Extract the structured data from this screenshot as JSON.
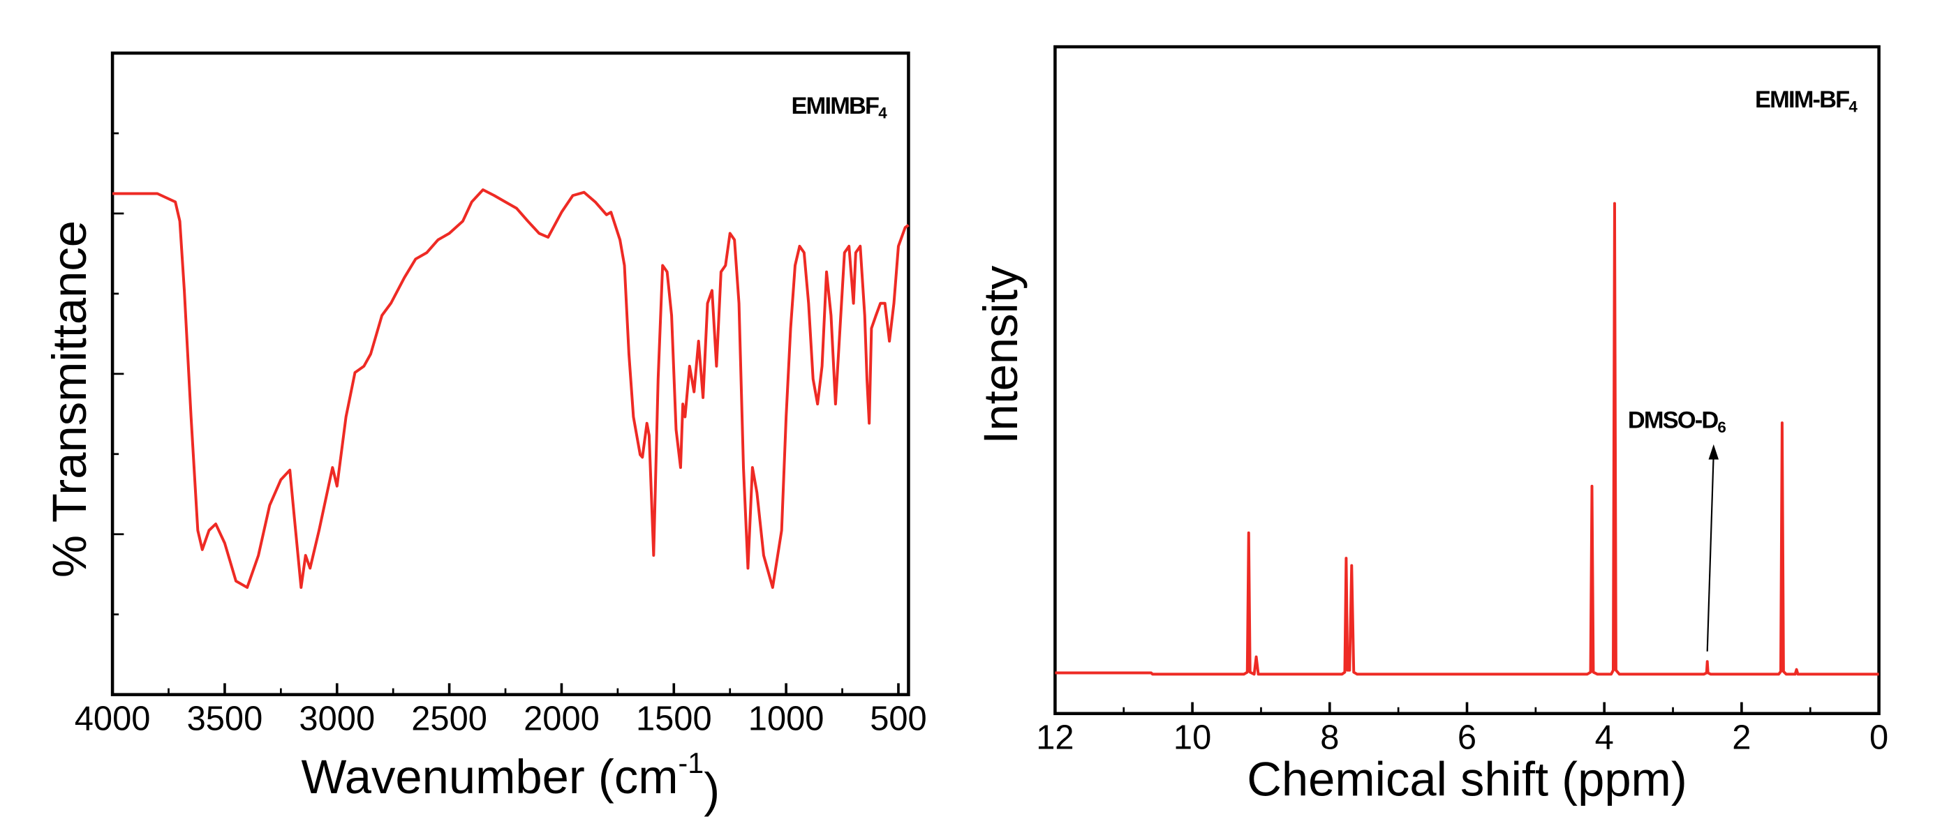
{
  "chart_data": [
    {
      "type": "line",
      "xlabel": {
        "text": "Wavenumber (cm",
        "superscript": "-1",
        "suffix": ")"
      },
      "ylabel": "% Transmittance",
      "annotations": [
        {
          "text": "EMIMBF",
          "subscript": "4"
        }
      ],
      "xlim": [
        4000,
        455
      ],
      "ylim": [
        0,
        100
      ],
      "xticks": [
        4000,
        3500,
        3000,
        2500,
        2000,
        1500,
        1000,
        500
      ],
      "color": "#ee2a24",
      "x": [
        4000,
        3900,
        3800,
        3720,
        3700,
        3680,
        3650,
        3620,
        3600,
        3570,
        3540,
        3500,
        3450,
        3400,
        3350,
        3300,
        3250,
        3210,
        3190,
        3160,
        3140,
        3120,
        3080,
        3020,
        3000,
        2960,
        2920,
        2880,
        2850,
        2800,
        2760,
        2700,
        2650,
        2600,
        2550,
        2500,
        2440,
        2400,
        2350,
        2300,
        2250,
        2200,
        2150,
        2100,
        2060,
        2000,
        1950,
        1900,
        1850,
        1800,
        1780,
        1740,
        1720,
        1700,
        1680,
        1650,
        1640,
        1620,
        1610,
        1590,
        1570,
        1550,
        1530,
        1510,
        1490,
        1470,
        1460,
        1450,
        1430,
        1410,
        1390,
        1370,
        1350,
        1330,
        1310,
        1290,
        1270,
        1250,
        1230,
        1210,
        1190,
        1170,
        1150,
        1130,
        1100,
        1060,
        1020,
        1000,
        980,
        960,
        940,
        920,
        900,
        880,
        860,
        840,
        820,
        800,
        780,
        760,
        740,
        720,
        700,
        690,
        670,
        650,
        640,
        630,
        620,
        600,
        580,
        560,
        540,
        520,
        500,
        470,
        455
      ],
      "values": [
        78.1,
        78.1,
        78.1,
        76.8,
        73.8,
        63.0,
        43.3,
        25.6,
        22.6,
        25.6,
        26.6,
        23.6,
        17.7,
        16.7,
        21.7,
        29.5,
        33.5,
        35.0,
        27.6,
        16.7,
        21.7,
        19.7,
        25.6,
        35.4,
        32.5,
        43.3,
        50.2,
        51.2,
        53.1,
        59.1,
        61.0,
        65.0,
        67.9,
        68.9,
        70.9,
        71.9,
        73.8,
        76.8,
        78.7,
        77.8,
        76.8,
        75.8,
        73.8,
        71.9,
        71.3,
        75.2,
        77.8,
        78.3,
        76.8,
        74.8,
        75.2,
        70.9,
        66.9,
        53.1,
        43.3,
        37.4,
        37.0,
        42.3,
        40.4,
        21.7,
        49.2,
        66.9,
        65.9,
        59.1,
        41.3,
        35.4,
        45.3,
        43.3,
        51.2,
        47.2,
        55.1,
        46.3,
        61.0,
        63.0,
        51.2,
        65.9,
        66.9,
        71.9,
        70.9,
        61.0,
        35.4,
        19.7,
        35.4,
        31.5,
        21.7,
        16.7,
        25.6,
        43.3,
        57.1,
        66.9,
        69.9,
        68.9,
        61.0,
        49.2,
        45.3,
        51.2,
        65.9,
        59.1,
        45.3,
        57.1,
        68.9,
        69.9,
        61.0,
        68.9,
        69.9,
        59.1,
        49.2,
        42.3,
        57.1,
        59.1,
        61.0,
        61.0,
        55.1,
        61.0,
        69.9,
        72.8,
        73.2
      ]
    },
    {
      "type": "line",
      "xlabel": {
        "text": "Chemical shift (ppm)"
      },
      "ylabel": "Intensity",
      "annotations": [
        {
          "text": "EMIM-BF",
          "subscript": "4"
        },
        {
          "text": "DMSO-D",
          "subscript": "6"
        }
      ],
      "xlim": [
        12,
        0
      ],
      "ylim": [
        0,
        100
      ],
      "xticks": [
        12,
        10,
        8,
        6,
        4,
        2,
        0
      ],
      "color": "#ee2a24",
      "x": [
        12,
        10.6,
        10.58,
        9.25,
        9.2,
        9.18,
        9.16,
        9.1,
        9.07,
        9.04,
        7.82,
        7.78,
        7.76,
        7.74,
        7.71,
        7.68,
        7.65,
        7.6,
        4.25,
        4.2,
        4.18,
        4.16,
        4.1,
        3.9,
        3.87,
        3.85,
        3.83,
        3.78,
        2.55,
        2.51,
        2.5,
        2.49,
        2.45,
        1.46,
        1.43,
        1.41,
        1.39,
        1.35,
        1.22,
        1.2,
        1.18,
        0
      ],
      "values": [
        6.1,
        6.1,
        5.9,
        5.9,
        6.2,
        27.1,
        6.2,
        5.9,
        8.5,
        5.9,
        5.9,
        6.2,
        23.3,
        6.5,
        6.5,
        22.2,
        6.2,
        5.9,
        5.9,
        6.2,
        34.1,
        6.2,
        5.9,
        5.9,
        6.5,
        76.5,
        6.5,
        5.9,
        5.9,
        6.1,
        7.8,
        6.1,
        5.9,
        5.9,
        6.3,
        43.6,
        6.3,
        5.9,
        5.9,
        6.6,
        5.9,
        5.9
      ]
    }
  ]
}
